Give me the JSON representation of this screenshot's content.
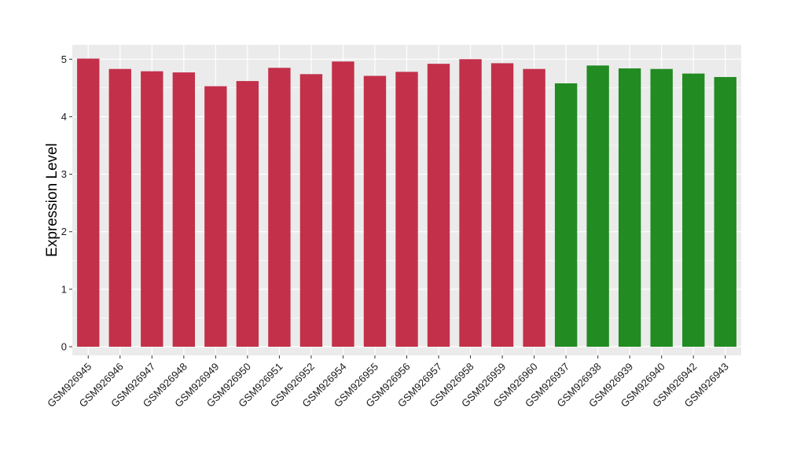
{
  "chart_data": {
    "type": "bar",
    "title": "",
    "xlabel": "",
    "ylabel": "Expression Level",
    "ylim": [
      -0.15,
      5.25
    ],
    "yticks": [
      0,
      1,
      2,
      3,
      4,
      5
    ],
    "grid": true,
    "legend": "none",
    "colors": {
      "red": "#c3304a",
      "green": "#228b22",
      "panel": "#ebebeb",
      "grid": "#ffffff"
    },
    "categories": [
      "GSM926945",
      "GSM926946",
      "GSM926947",
      "GSM926948",
      "GSM926949",
      "GSM926950",
      "GSM926951",
      "GSM926952",
      "GSM926954",
      "GSM926955",
      "GSM926956",
      "GSM926957",
      "GSM926958",
      "GSM926959",
      "GSM926960",
      "GSM926937",
      "GSM926938",
      "GSM926939",
      "GSM926940",
      "GSM926942",
      "GSM926943"
    ],
    "values": [
      5.01,
      4.83,
      4.79,
      4.77,
      4.53,
      4.62,
      4.85,
      4.74,
      4.96,
      4.71,
      4.78,
      4.92,
      5.0,
      4.93,
      4.83,
      4.58,
      4.89,
      4.84,
      4.83,
      4.75,
      4.69
    ],
    "bar_colors": [
      "red",
      "red",
      "red",
      "red",
      "red",
      "red",
      "red",
      "red",
      "red",
      "red",
      "red",
      "red",
      "red",
      "red",
      "red",
      "green",
      "green",
      "green",
      "green",
      "green",
      "green"
    ]
  }
}
